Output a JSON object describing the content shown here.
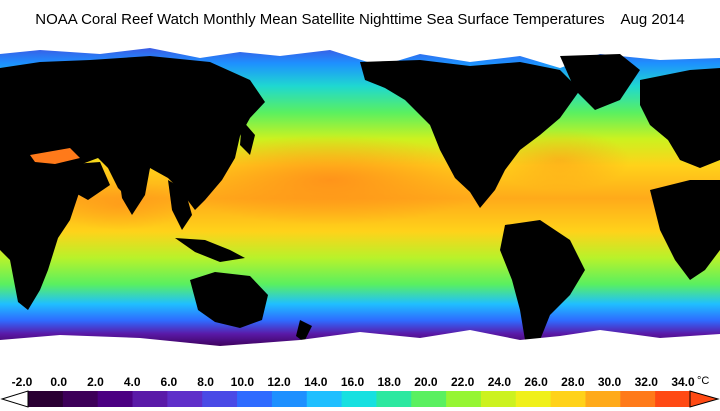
{
  "title": {
    "text": "NOAA Coral Reef Watch Monthly Mean Satellite Nighttime Sea Surface Temperatures",
    "date": "Aug 2014"
  },
  "colorbar": {
    "tick_labels": [
      "-2.0",
      "0.0",
      "2.0",
      "4.0",
      "6.0",
      "8.0",
      "10.0",
      "12.0",
      "14.0",
      "16.0",
      "18.0",
      "20.0",
      "22.0",
      "24.0",
      "26.0",
      "28.0",
      "30.0",
      "32.0",
      "34.0"
    ],
    "unit": "°C",
    "colors": [
      "#2a0033",
      "#3d0059",
      "#4b0082",
      "#5a1aa8",
      "#5f2fc9",
      "#4a4ae6",
      "#2f6bff",
      "#1e90ff",
      "#1fbfff",
      "#17e0e0",
      "#2ce8a0",
      "#5af060",
      "#96f533",
      "#ccf21f",
      "#f0f01a",
      "#ffd21a",
      "#ffaa1a",
      "#ff7a1a",
      "#ff4a14"
    ]
  },
  "map": {
    "land_color": "#000000",
    "ice_color": "#ffffff"
  }
}
